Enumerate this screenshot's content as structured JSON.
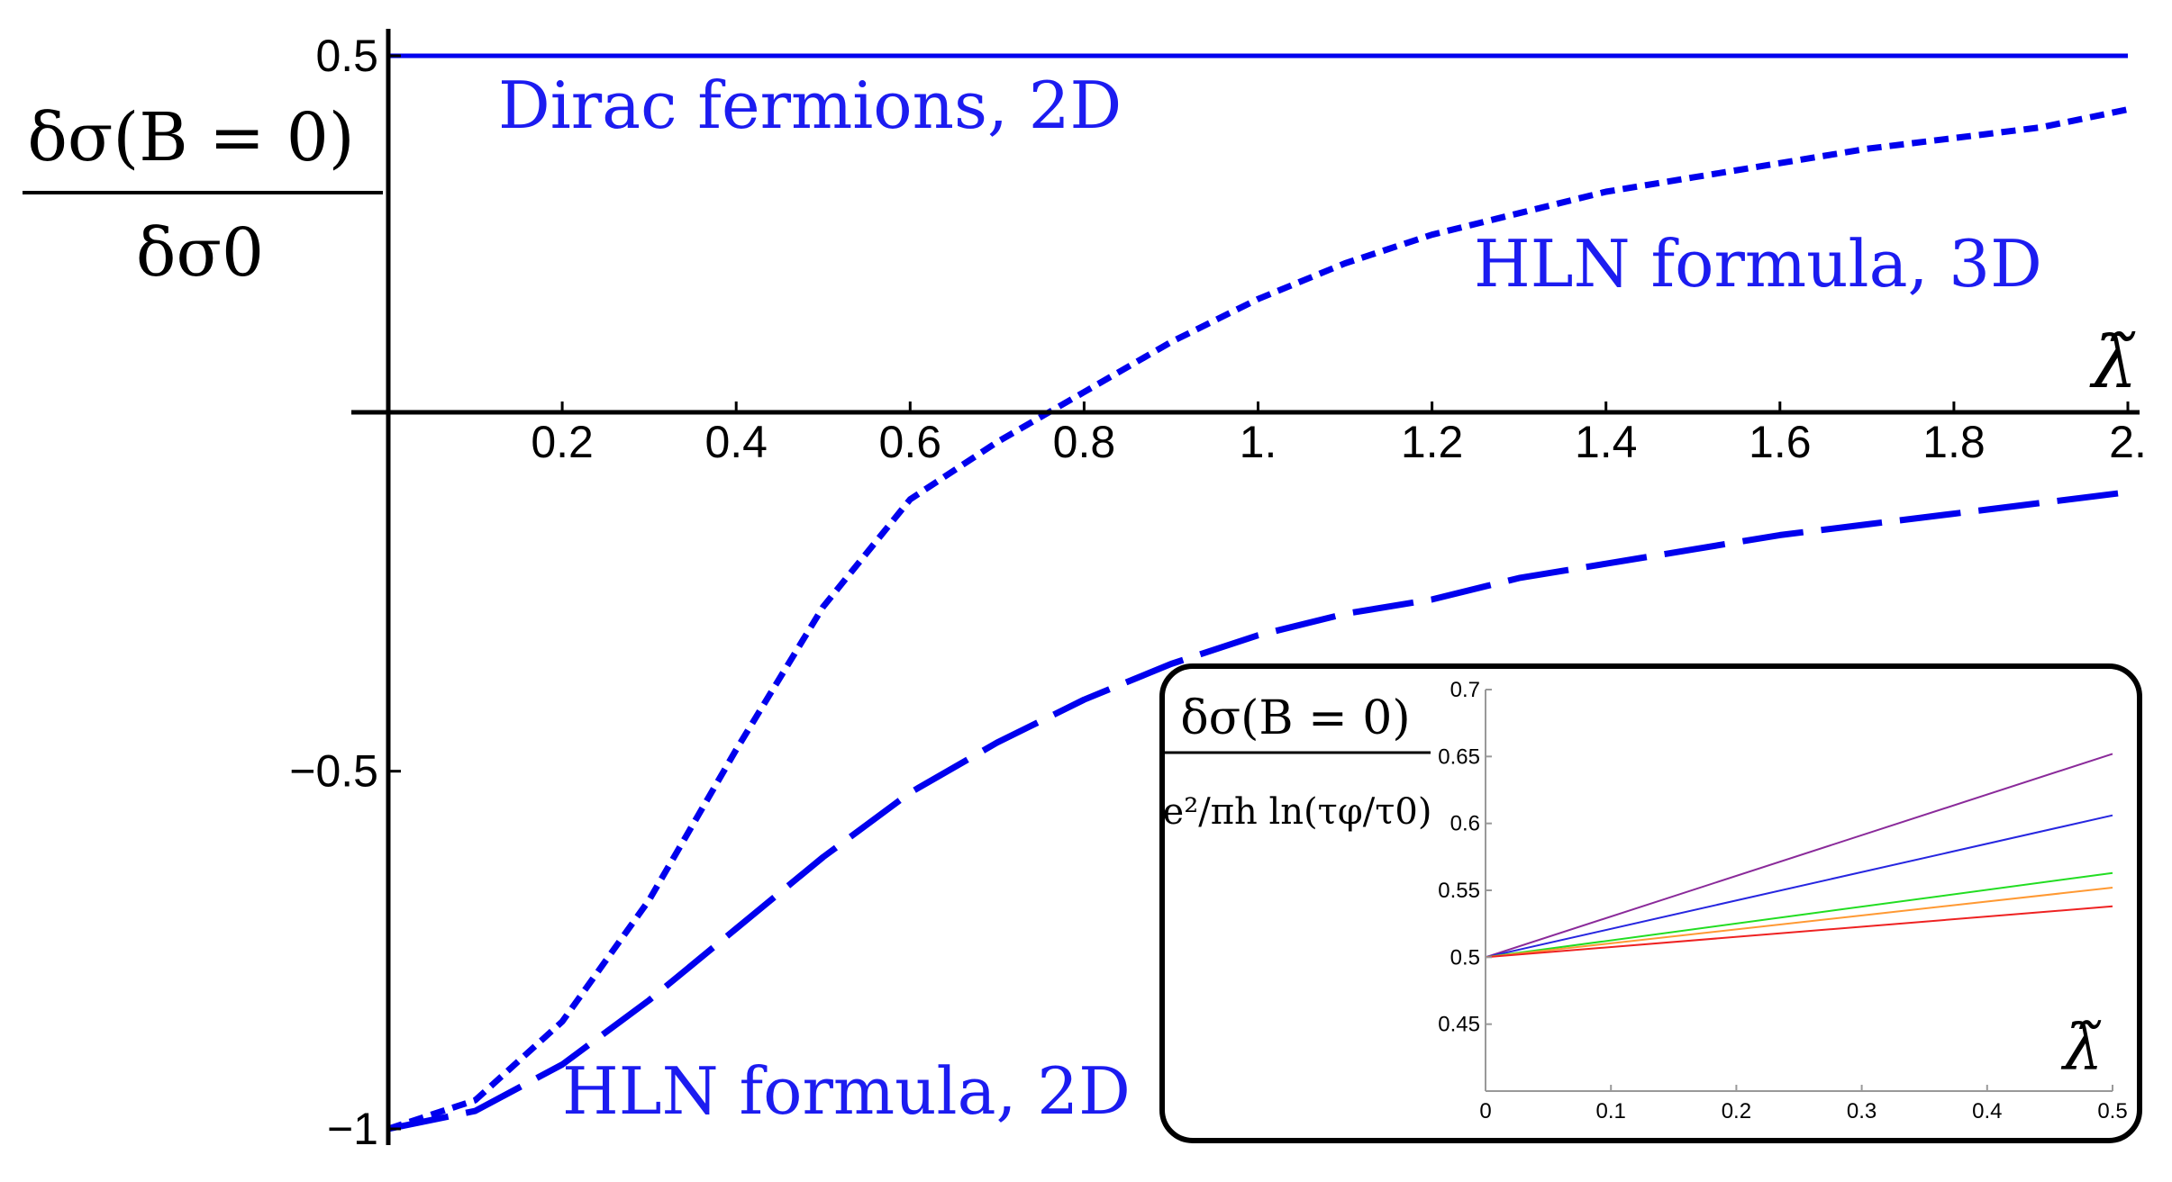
{
  "chart_data": [
    {
      "type": "line",
      "xlabel": "λ̃",
      "ylabel": {
        "numerator": "δσ(B = 0)",
        "denominator": "δσ0"
      },
      "xlim": [
        0,
        2
      ],
      "ylim": [
        -1,
        0.5
      ],
      "x_ticks": [
        "0.2",
        "0.4",
        "0.6",
        "0.8",
        "1.",
        "1.2",
        "1.4",
        "1.6",
        "1.8",
        "2."
      ],
      "y_ticks": [
        "0.5",
        "−0.5",
        "−1"
      ],
      "grid": false,
      "color": "#0000ee",
      "series": [
        {
          "name": "Dirac fermions, 2D",
          "style": "solid",
          "x": [
            0,
            0.5,
            1.0,
            1.5,
            2.0
          ],
          "y": [
            0.5,
            0.5,
            0.5,
            0.5,
            0.5
          ]
        },
        {
          "name": "HLN formula, 3D",
          "style": "short-dash",
          "x": [
            0,
            0.1,
            0.2,
            0.3,
            0.4,
            0.5,
            0.6,
            0.7,
            0.8,
            0.9,
            1.0,
            1.1,
            1.2,
            1.3,
            1.4,
            1.5,
            1.6,
            1.7,
            1.8,
            1.9,
            2.0
          ],
          "y": [
            -1.0,
            -0.96,
            -0.85,
            -0.68,
            -0.47,
            -0.27,
            -0.12,
            -0.04,
            0.03,
            0.1,
            0.16,
            0.21,
            0.25,
            0.28,
            0.31,
            0.33,
            0.35,
            0.37,
            0.385,
            0.4,
            0.425
          ]
        },
        {
          "name": "HLN formula, 2D",
          "style": "long-dash",
          "x": [
            0,
            0.1,
            0.2,
            0.3,
            0.4,
            0.5,
            0.6,
            0.7,
            0.8,
            0.9,
            1.0,
            1.1,
            1.2,
            1.3,
            1.4,
            1.5,
            1.6,
            1.7,
            1.8,
            1.9,
            2.0
          ],
          "y": [
            -1.0,
            -0.975,
            -0.91,
            -0.82,
            -0.72,
            -0.62,
            -0.53,
            -0.46,
            -0.4,
            -0.35,
            -0.31,
            -0.28,
            -0.26,
            -0.23,
            -0.21,
            -0.19,
            -0.17,
            -0.155,
            -0.14,
            -0.125,
            -0.11
          ]
        }
      ],
      "annotations": [
        "Dirac fermions, 2D",
        "HLN formula, 3D",
        "HLN formula, 2D"
      ]
    },
    {
      "type": "line",
      "inset": true,
      "xlabel": "λ̃",
      "ylabel": {
        "numerator": "δσ(B = 0)",
        "denominator": "e²/πh ln(τφ/τ0)"
      },
      "xlim": [
        0,
        0.5
      ],
      "ylim": [
        0.4,
        0.7
      ],
      "x_ticks": [
        "0",
        "0.1",
        "0.2",
        "0.3",
        "0.4",
        "0.5"
      ],
      "y_ticks": [
        "0.7",
        "0.65",
        "0.6",
        "0.55",
        "0.5",
        "0.45"
      ],
      "grid": false,
      "series": [
        {
          "color": "#8a2a9a",
          "x": [
            0,
            0.5
          ],
          "y": [
            0.5,
            0.652
          ]
        },
        {
          "color": "#2626e0",
          "x": [
            0,
            0.5
          ],
          "y": [
            0.5,
            0.606
          ]
        },
        {
          "color": "#22dd22",
          "x": [
            0,
            0.5
          ],
          "y": [
            0.5,
            0.563
          ]
        },
        {
          "color": "#ff9933",
          "x": [
            0,
            0.5
          ],
          "y": [
            0.5,
            0.552
          ]
        },
        {
          "color": "#ee2222",
          "x": [
            0,
            0.5
          ],
          "y": [
            0.5,
            0.538
          ]
        }
      ]
    }
  ]
}
